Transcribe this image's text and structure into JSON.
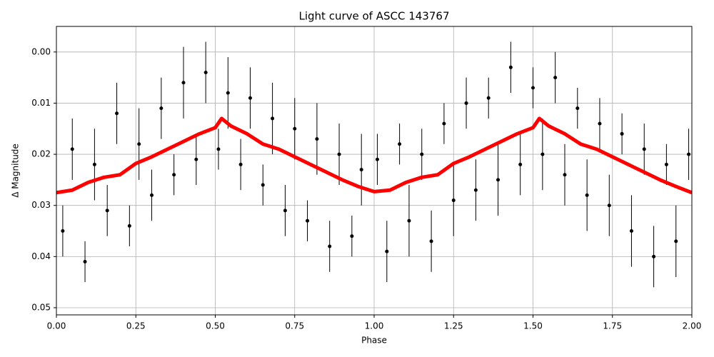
{
  "chart_data": {
    "type": "line",
    "title": "Light curve of ASCC 143767",
    "x_label": "Phase",
    "y_label": "Δ Magnitude",
    "xlim": [
      0,
      2
    ],
    "ylim": [
      0.0514,
      -0.005
    ],
    "grid": true,
    "xticks": [
      {
        "value": 0,
        "label": "0.00"
      },
      {
        "value": 0.25,
        "label": "0.25"
      },
      {
        "value": 0.5,
        "label": "0.50"
      },
      {
        "value": 0.75,
        "label": "0.75"
      },
      {
        "value": 1,
        "label": "1.00"
      },
      {
        "value": 1.25,
        "label": "1.25"
      },
      {
        "value": 1.5,
        "label": "1.50"
      },
      {
        "value": 1.75,
        "label": "1.75"
      },
      {
        "value": 2,
        "label": "2.00"
      }
    ],
    "yticks": [
      {
        "value": 0,
        "label": "0.00"
      },
      {
        "value": 0.01,
        "label": "0.01"
      },
      {
        "value": 0.02,
        "label": "0.02"
      },
      {
        "value": 0.03,
        "label": "0.03"
      },
      {
        "value": 0.04,
        "label": "0.04"
      },
      {
        "value": 0.05,
        "label": "0.05"
      }
    ],
    "series": [
      {
        "type": "errorbar",
        "color": "#000000",
        "x": [
          0.02,
          0.05,
          0.09,
          0.12,
          0.16,
          0.19,
          0.23,
          0.26,
          0.3,
          0.33,
          0.37,
          0.4,
          0.44,
          0.47,
          0.51,
          0.54,
          0.58,
          0.61,
          0.65,
          0.68,
          0.72,
          0.75,
          0.79,
          0.82,
          0.86,
          0.89,
          0.93,
          0.96,
          1.01,
          1.04,
          1.08,
          1.11,
          1.15,
          1.18,
          1.22,
          1.25,
          1.29,
          1.32,
          1.36,
          1.39,
          1.43,
          1.46,
          1.5,
          1.53,
          1.57,
          1.6,
          1.64,
          1.67,
          1.71,
          1.74,
          1.78,
          1.81,
          1.85,
          1.88,
          1.92,
          1.95,
          1.99
        ],
        "values": [
          0.035,
          0.019,
          0.041,
          0.022,
          0.031,
          0.012,
          0.034,
          0.018,
          0.028,
          0.011,
          0.024,
          0.006,
          0.021,
          0.004,
          0.019,
          0.008,
          0.022,
          0.009,
          0.026,
          0.013,
          0.031,
          0.015,
          0.033,
          0.017,
          0.038,
          0.02,
          0.036,
          0.023,
          0.021,
          0.039,
          0.018,
          0.033,
          0.02,
          0.037,
          0.014,
          0.029,
          0.01,
          0.027,
          0.009,
          0.025,
          0.003,
          0.022,
          0.007,
          0.02,
          0.005,
          0.024,
          0.011,
          0.028,
          0.014,
          0.03,
          0.016,
          0.035,
          0.019,
          0.04,
          0.022,
          0.037,
          0.02
        ],
        "errors": [
          0.005,
          0.006,
          0.004,
          0.007,
          0.005,
          0.006,
          0.004,
          0.007,
          0.005,
          0.006,
          0.004,
          0.007,
          0.005,
          0.006,
          0.004,
          0.007,
          0.005,
          0.006,
          0.004,
          0.007,
          0.005,
          0.006,
          0.004,
          0.007,
          0.005,
          0.006,
          0.004,
          0.007,
          0.005,
          0.006,
          0.004,
          0.007,
          0.005,
          0.006,
          0.004,
          0.007,
          0.005,
          0.006,
          0.004,
          0.007,
          0.005,
          0.006,
          0.004,
          0.007,
          0.005,
          0.006,
          0.004,
          0.007,
          0.005,
          0.006,
          0.004,
          0.007,
          0.005,
          0.006,
          0.004,
          0.007,
          0.005
        ]
      },
      {
        "type": "line",
        "color": "#ff0000",
        "x": [
          0,
          0.05,
          0.1,
          0.15,
          0.2,
          0.25,
          0.3,
          0.35,
          0.4,
          0.45,
          0.5,
          0.52,
          0.55,
          0.6,
          0.65,
          0.7,
          0.75,
          0.8,
          0.85,
          0.9,
          0.95,
          1,
          1.05,
          1.1,
          1.15,
          1.2,
          1.25,
          1.3,
          1.35,
          1.4,
          1.45,
          1.5,
          1.52,
          1.55,
          1.6,
          1.65,
          1.7,
          1.75,
          1.8,
          1.85,
          1.9,
          1.95,
          2
        ],
        "values": [
          0.0275,
          0.027,
          0.0255,
          0.0245,
          0.024,
          0.0218,
          0.0205,
          0.019,
          0.0175,
          0.016,
          0.0148,
          0.013,
          0.0145,
          0.016,
          0.018,
          0.019,
          0.0205,
          0.022,
          0.0235,
          0.025,
          0.0263,
          0.0273,
          0.027,
          0.0255,
          0.0245,
          0.024,
          0.0218,
          0.0205,
          0.019,
          0.0175,
          0.016,
          0.0148,
          0.013,
          0.0145,
          0.016,
          0.018,
          0.019,
          0.0205,
          0.022,
          0.0235,
          0.025,
          0.0263,
          0.0275
        ]
      }
    ]
  }
}
